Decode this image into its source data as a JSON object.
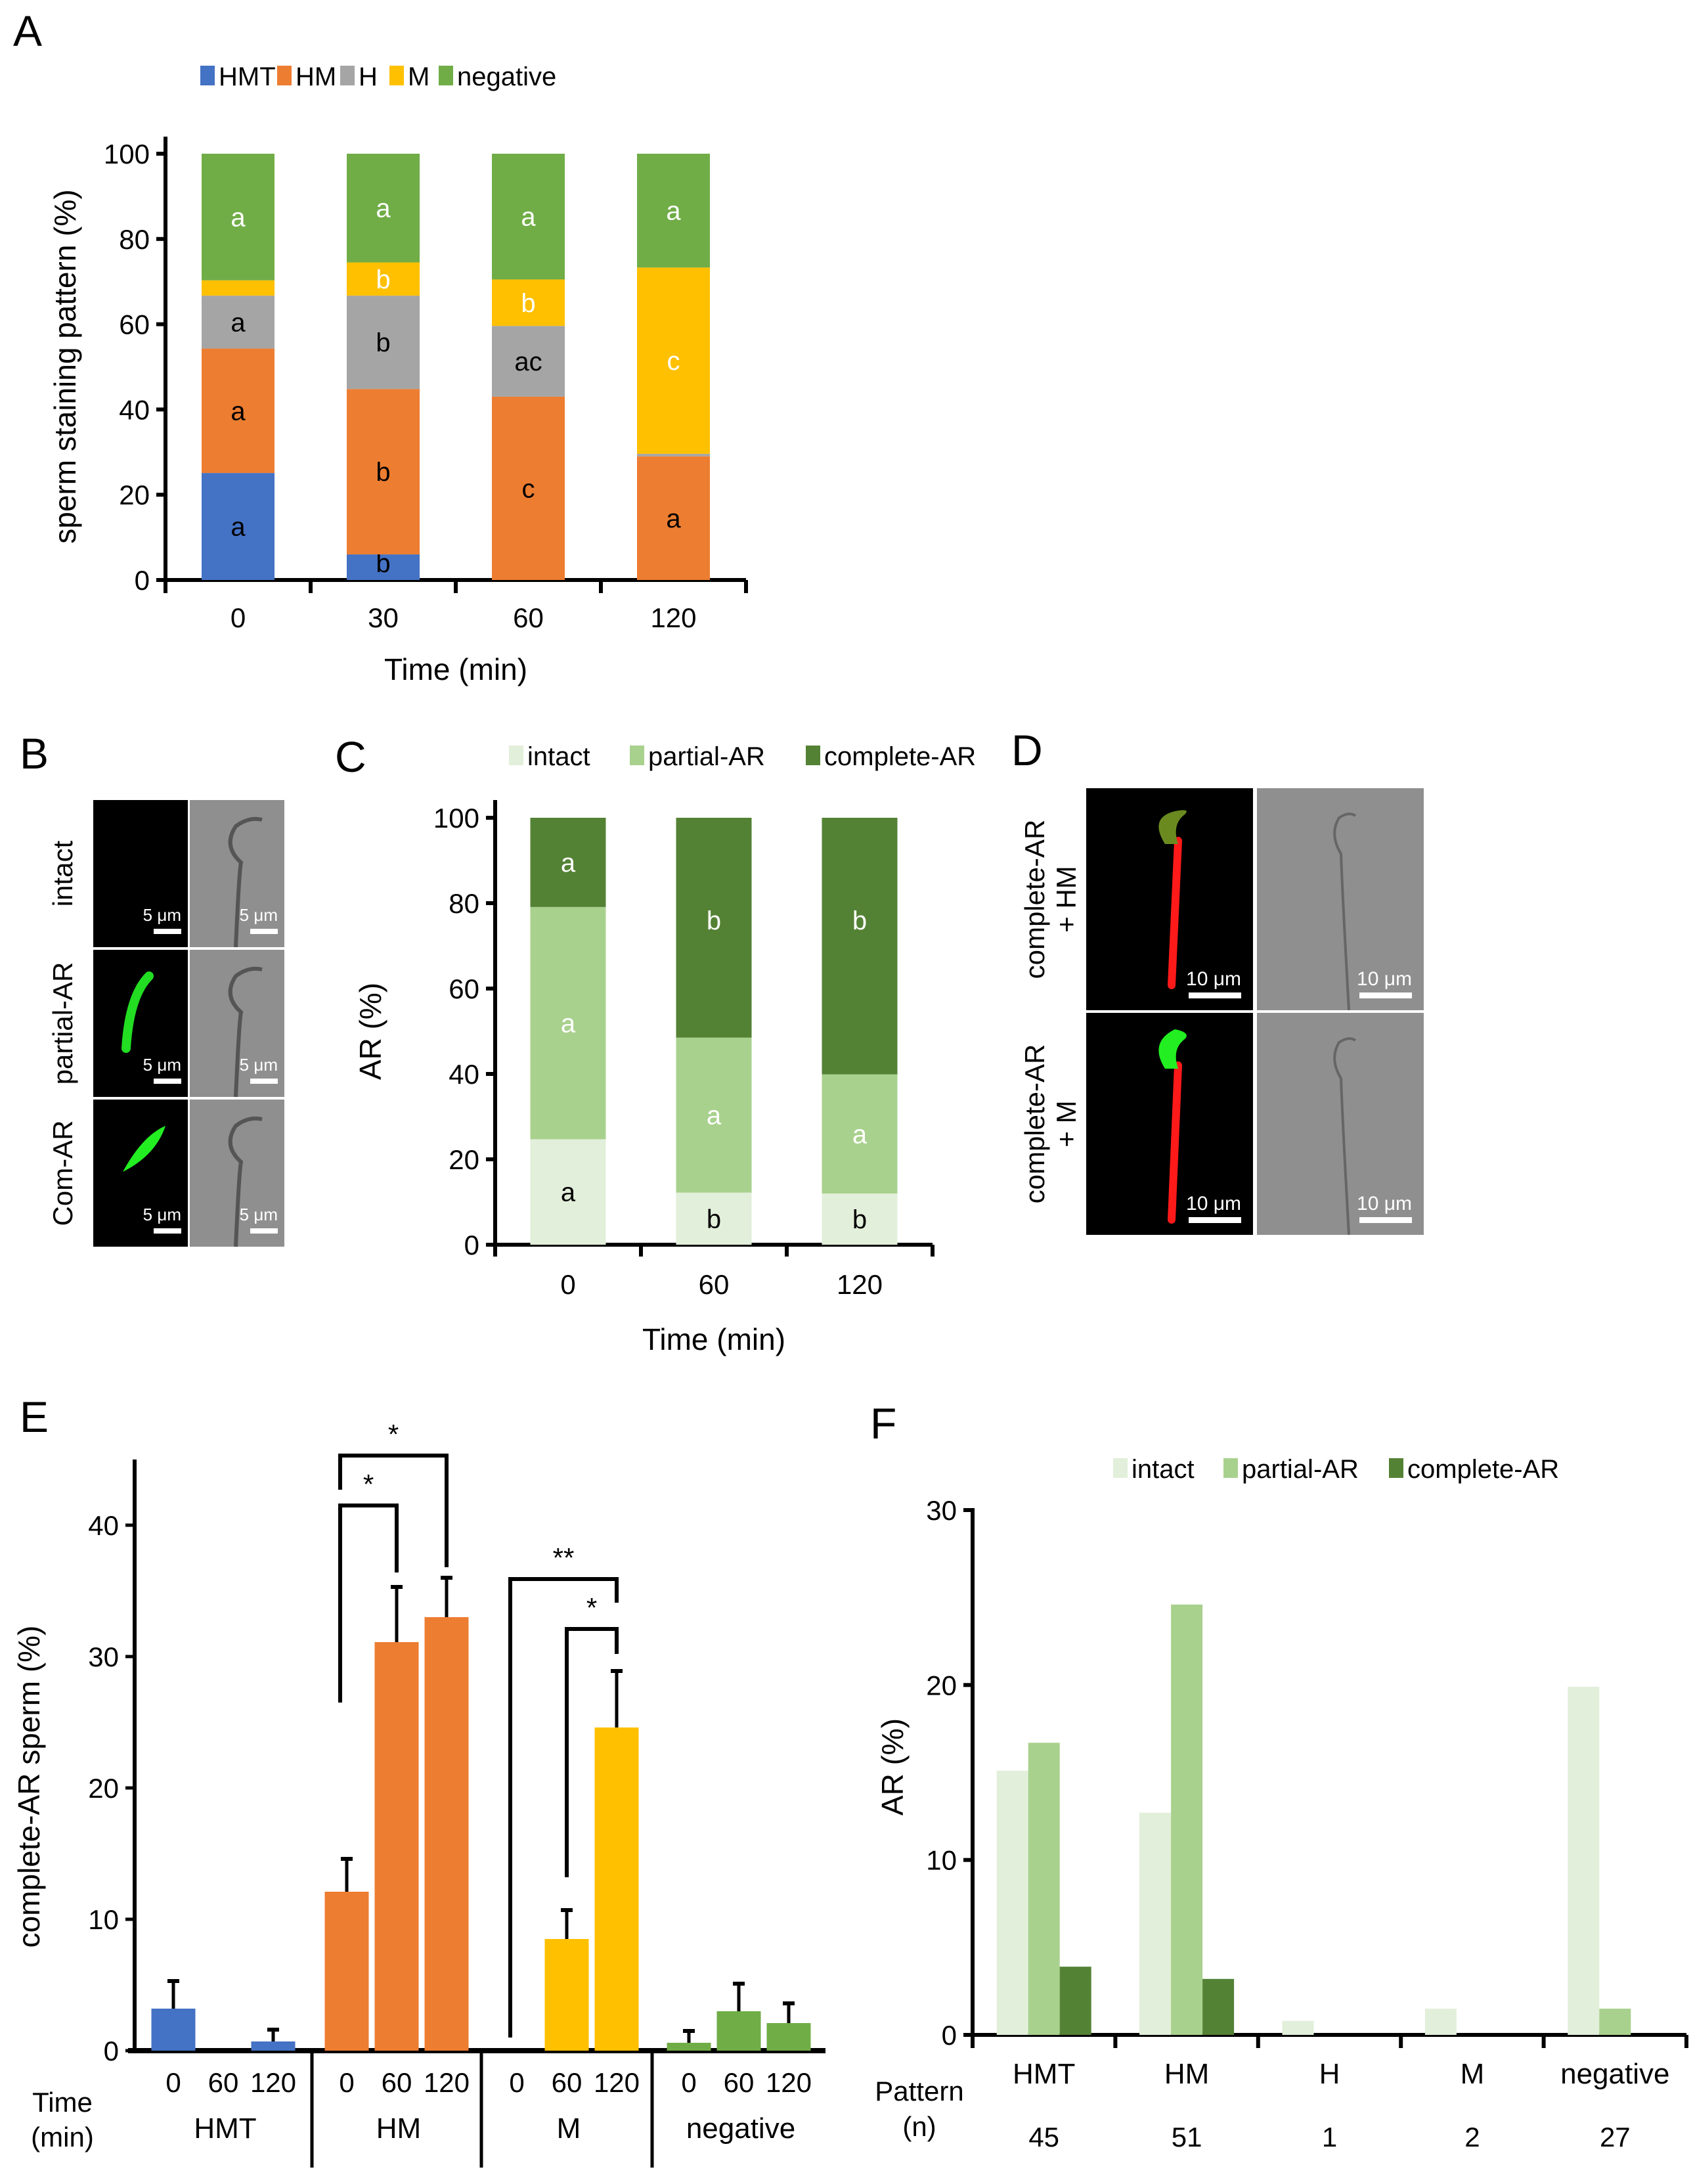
{
  "panels": {
    "A": {
      "label": "A"
    },
    "B": {
      "label": "B"
    },
    "C": {
      "label": "C"
    },
    "D": {
      "label": "D"
    },
    "E": {
      "label": "E"
    },
    "F": {
      "label": "F"
    }
  },
  "colors": {
    "HMT": "#4472C4",
    "HM": "#ED7D31",
    "H": "#A5A5A5",
    "M": "#FFC000",
    "negative": "#70AD47",
    "intact": "#E2EFDA",
    "partial": "#A9D18E",
    "complete": "#548235"
  },
  "chart_data": [
    {
      "id": "A",
      "type": "bar",
      "stacked": true,
      "title": "",
      "xlabel": "Time (min)",
      "ylabel": "sperm staining pattern (%)",
      "ylim": [
        0,
        100
      ],
      "yticks": [
        0,
        20,
        40,
        60,
        80,
        100
      ],
      "categories": [
        "0",
        "30",
        "60",
        "120"
      ],
      "legend": [
        "HMT",
        "HM",
        "H",
        "M",
        "negative"
      ],
      "legend_position": "top",
      "series": [
        {
          "name": "HMT",
          "color": "#4472C4",
          "values": [
            25.1,
            6.0,
            0,
            0
          ],
          "letters": [
            "a",
            "b",
            "",
            ""
          ],
          "letter_color": "#000000"
        },
        {
          "name": "HM",
          "color": "#ED7D31",
          "values": [
            29.2,
            38.8,
            43.0,
            29.0
          ],
          "letters": [
            "a",
            "b",
            "c",
            "a"
          ],
          "letter_color": "#000000"
        },
        {
          "name": "H",
          "color": "#A5A5A5",
          "values": [
            12.4,
            21.9,
            16.6,
            0.6
          ],
          "letters": [
            "a",
            "b",
            "ac",
            ""
          ],
          "letter_color": "#000000"
        },
        {
          "name": "M",
          "color": "#FFC000",
          "values": [
            3.6,
            7.8,
            10.9,
            43.7
          ],
          "letters": [
            "a",
            "b",
            "b",
            "c"
          ],
          "letter_color": "#FFFFFF"
        },
        {
          "name": "negative",
          "color": "#70AD47",
          "values": [
            29.7,
            25.5,
            29.5,
            26.7
          ],
          "letters": [
            "a",
            "a",
            "a",
            "a"
          ],
          "letter_color": "#FFFFFF"
        }
      ],
      "note": "For 0 min, the M-segment letter 'a' is drawn inside the negative segment just above the thin M band."
    },
    {
      "id": "C",
      "type": "bar",
      "stacked": true,
      "xlabel": "Time (min)",
      "ylabel": "AR (%)",
      "ylim": [
        0,
        100
      ],
      "yticks": [
        0,
        20,
        40,
        60,
        80,
        100
      ],
      "categories": [
        "0",
        "60",
        "120"
      ],
      "legend": [
        "intact",
        "partial-AR",
        "complete-AR"
      ],
      "legend_position": "top",
      "series": [
        {
          "name": "intact",
          "color": "#E2EFDA",
          "values": [
            24.7,
            12.2,
            12.0
          ],
          "letters": [
            "a",
            "b",
            "b"
          ],
          "letter_color": "#000000"
        },
        {
          "name": "partial-AR",
          "color": "#A9D18E",
          "values": [
            54.4,
            36.3,
            27.9
          ],
          "letters": [
            "a",
            "a",
            "a"
          ],
          "letter_color": "#FFFFFF"
        },
        {
          "name": "complete-AR",
          "color": "#548235",
          "values": [
            20.9,
            51.5,
            60.1
          ],
          "letters": [
            "a",
            "b",
            "b"
          ],
          "letter_color": "#FFFFFF"
        }
      ]
    },
    {
      "id": "E",
      "type": "bar",
      "title": "",
      "xlabel": "Time (min)",
      "ylabel": "complete-AR sperm (%)",
      "ylim": [
        0,
        45
      ],
      "yticks": [
        0,
        10,
        20,
        30,
        40
      ],
      "groups": [
        {
          "name": "HMT",
          "color": "#4472C4",
          "times": [
            "0",
            "60",
            "120"
          ],
          "values": [
            3.2,
            0,
            0.7
          ],
          "errors": [
            2.1,
            0,
            0.9
          ]
        },
        {
          "name": "HM",
          "color": "#ED7D31",
          "times": [
            "0",
            "60",
            "120"
          ],
          "values": [
            12.1,
            31.1,
            33.0
          ],
          "errors": [
            2.5,
            4.2,
            3.0
          ]
        },
        {
          "name": "M",
          "color": "#FFC000",
          "times": [
            "0",
            "60",
            "120"
          ],
          "values": [
            0,
            8.5,
            24.6
          ],
          "errors": [
            0,
            2.2,
            4.3
          ]
        },
        {
          "name": "negative",
          "color": "#70AD47",
          "times": [
            "0",
            "60",
            "120"
          ],
          "values": [
            0.6,
            3.0,
            2.1
          ],
          "errors": [
            0.9,
            2.1,
            1.5
          ]
        }
      ],
      "significance": [
        {
          "group": "HM",
          "from": "0",
          "to": "60",
          "label": "*"
        },
        {
          "group": "HM",
          "from": "0",
          "to": "120",
          "label": "*"
        },
        {
          "group": "M",
          "from": "0",
          "to": "120",
          "label": "**"
        },
        {
          "group": "M",
          "from": "60",
          "to": "120",
          "label": "*"
        }
      ],
      "time_label": "Time\n(min)"
    },
    {
      "id": "F",
      "type": "bar",
      "xlabel": "Pattern",
      "ylabel": "AR (%)",
      "ylim": [
        0,
        30
      ],
      "yticks": [
        0,
        10,
        20,
        30
      ],
      "categories": [
        "HMT",
        "HM",
        "H",
        "M",
        "negative"
      ],
      "n": [
        "45",
        "51",
        "1",
        "2",
        "27"
      ],
      "row_label": [
        "Pattern",
        "(n)"
      ],
      "legend": [
        "intact",
        "partial-AR",
        "complete-AR"
      ],
      "legend_position": "top",
      "series": [
        {
          "name": "intact",
          "color": "#E2EFDA",
          "values": [
            15.1,
            12.7,
            0.8,
            1.5,
            19.9
          ]
        },
        {
          "name": "partial-AR",
          "color": "#A9D18E",
          "values": [
            16.7,
            24.6,
            0,
            0,
            1.5
          ]
        },
        {
          "name": "complete-AR",
          "color": "#548235",
          "values": [
            3.9,
            3.2,
            0,
            0,
            0
          ]
        }
      ]
    }
  ],
  "micrographs": {
    "B": {
      "rows": [
        "intact",
        "partial-AR",
        "Com-AR"
      ],
      "scale_bar": "5 μm"
    },
    "D": {
      "rows": [
        [
          "complete-AR",
          "+ HM"
        ],
        [
          "complete-AR",
          "+ M"
        ]
      ],
      "scale_bar": "10 μm"
    }
  }
}
